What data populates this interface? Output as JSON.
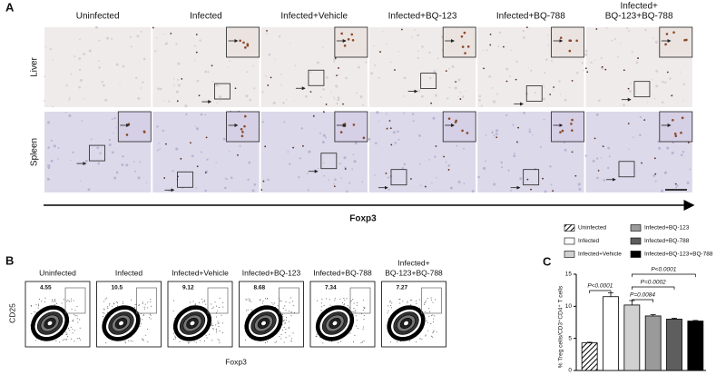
{
  "panel_a": {
    "label": "A",
    "columns": [
      "Uninfected",
      "Infected",
      "Infected+Vehicle",
      "Infected+BQ-123",
      "Infected+BQ-788",
      [
        "Infected+",
        "BQ-123+BQ-788"
      ]
    ],
    "rows": [
      "Liver",
      "Spleen"
    ],
    "axis_label": "Foxp3"
  },
  "panel_b": {
    "label": "B",
    "columns": [
      "Uninfected",
      "Infected",
      "Infected+Vehicle",
      "Infected+BQ-123",
      "Infected+BQ-788",
      [
        "Infected+",
        "BQ-123+BQ-788"
      ]
    ],
    "gate_values": [
      "4.55",
      "10.5",
      "9.12",
      "8.68",
      "7.34",
      "7.27"
    ],
    "y_label": "CD25",
    "x_label": "Foxp3"
  },
  "chart_data": {
    "type": "bar",
    "label": "C",
    "y_label": "% Treg cells/CD3⁺CD4⁺ T cells",
    "categories": [
      "Uninfected",
      "Infected",
      "Infected+Vehicle",
      "Infected+BQ-123",
      "Infected+BQ-788",
      "Infected+BQ-123+BQ-788"
    ],
    "values": [
      4.3,
      11.5,
      10.2,
      8.5,
      8.0,
      7.7
    ],
    "errors": [
      0.1,
      0.6,
      0.7,
      0.2,
      0.15,
      0.1
    ],
    "colors": [
      "hatch",
      "#ffffff",
      "#d0d0d0",
      "#9a9a9a",
      "#5e5e5e",
      "#000000"
    ],
    "ylim": [
      0,
      15
    ],
    "yticks": [
      0,
      5,
      10,
      15
    ],
    "annotations": [
      "P<0.0001",
      "P=0.0084",
      "P=0.0002",
      "P<0.0001"
    ]
  }
}
